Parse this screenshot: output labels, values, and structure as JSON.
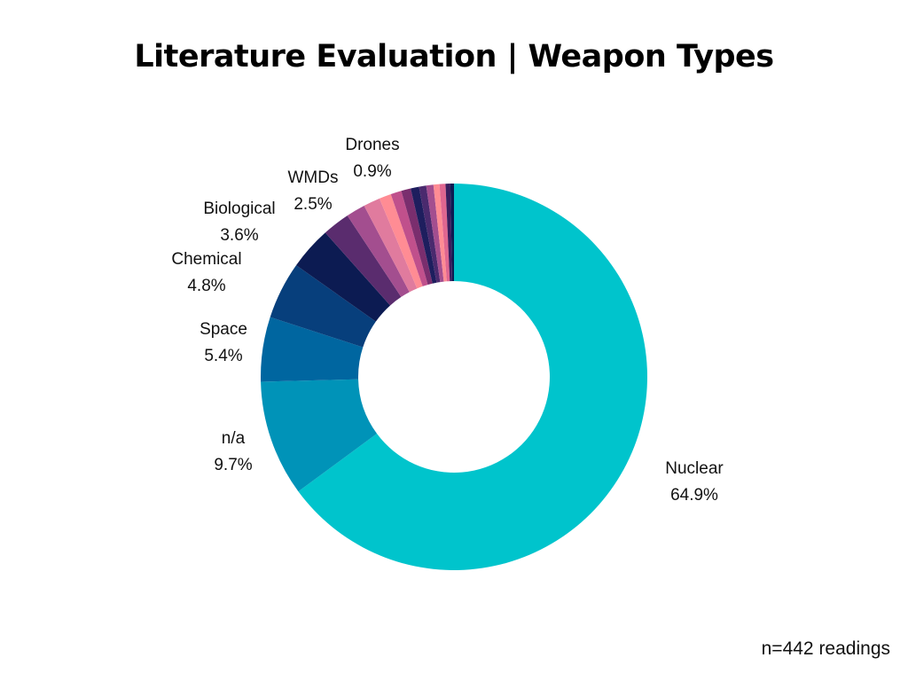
{
  "chart_data": {
    "type": "pie",
    "style": "donut",
    "title": "Literature Evaluation | Weapon Types",
    "slices": [
      {
        "label": "Nuclear",
        "value": 64.9,
        "value_label": "64.9%",
        "color": "#00c4cc",
        "labeled": true
      },
      {
        "label": "n/a",
        "value": 9.7,
        "value_label": "9.7%",
        "color": "#0093b8",
        "labeled": true
      },
      {
        "label": "Space",
        "value": 5.4,
        "value_label": "5.4%",
        "color": "#0066a0",
        "labeled": true
      },
      {
        "label": "Chemical",
        "value": 4.8,
        "value_label": "4.8%",
        "color": "#073f7c",
        "labeled": true
      },
      {
        "label": "Biological",
        "value": 3.6,
        "value_label": "3.6%",
        "color": "#0c1b52",
        "labeled": true
      },
      {
        "label": "",
        "value": 2.3,
        "value_label": "",
        "color": "#5a2c6e",
        "labeled": false
      },
      {
        "label": "",
        "value": 1.6,
        "value_label": "",
        "color": "#a34e8f",
        "labeled": false
      },
      {
        "label": "",
        "value": 1.4,
        "value_label": "",
        "color": "#e07b9e",
        "labeled": false
      },
      {
        "label": "",
        "value": 1.0,
        "value_label": "",
        "color": "#ff8c94",
        "labeled": false
      },
      {
        "label": "",
        "value": 0.9,
        "value_label": "",
        "color": "#c0508c",
        "labeled": false
      },
      {
        "label": "",
        "value": 0.8,
        "value_label": "",
        "color": "#7a2e6e",
        "labeled": false
      },
      {
        "label": "",
        "value": 0.7,
        "value_label": "",
        "color": "#1e1e5e",
        "labeled": false
      },
      {
        "label": "",
        "value": 0.6,
        "value_label": "",
        "color": "#4a2a6e",
        "labeled": false
      },
      {
        "label": "",
        "value": 0.6,
        "value_label": "",
        "color": "#a34e8f",
        "labeled": false
      },
      {
        "label": "",
        "value": 0.5,
        "value_label": "",
        "color": "#ff8c94",
        "labeled": false
      },
      {
        "label": "",
        "value": 0.5,
        "value_label": "",
        "color": "#e06690",
        "labeled": false
      },
      {
        "label": "",
        "value": 0.4,
        "value_label": "",
        "color": "#3a1e5e",
        "labeled": false
      },
      {
        "label": "",
        "value": 0.3,
        "value_label": "",
        "color": "#0c1b52",
        "labeled": false
      }
    ],
    "extra_labels": [
      {
        "label": "WMDs",
        "value_label": "2.5%"
      },
      {
        "label": "Drones",
        "value_label": "0.9%"
      }
    ],
    "legend": "none",
    "grid": false
  },
  "footnote": "n=442 readings"
}
